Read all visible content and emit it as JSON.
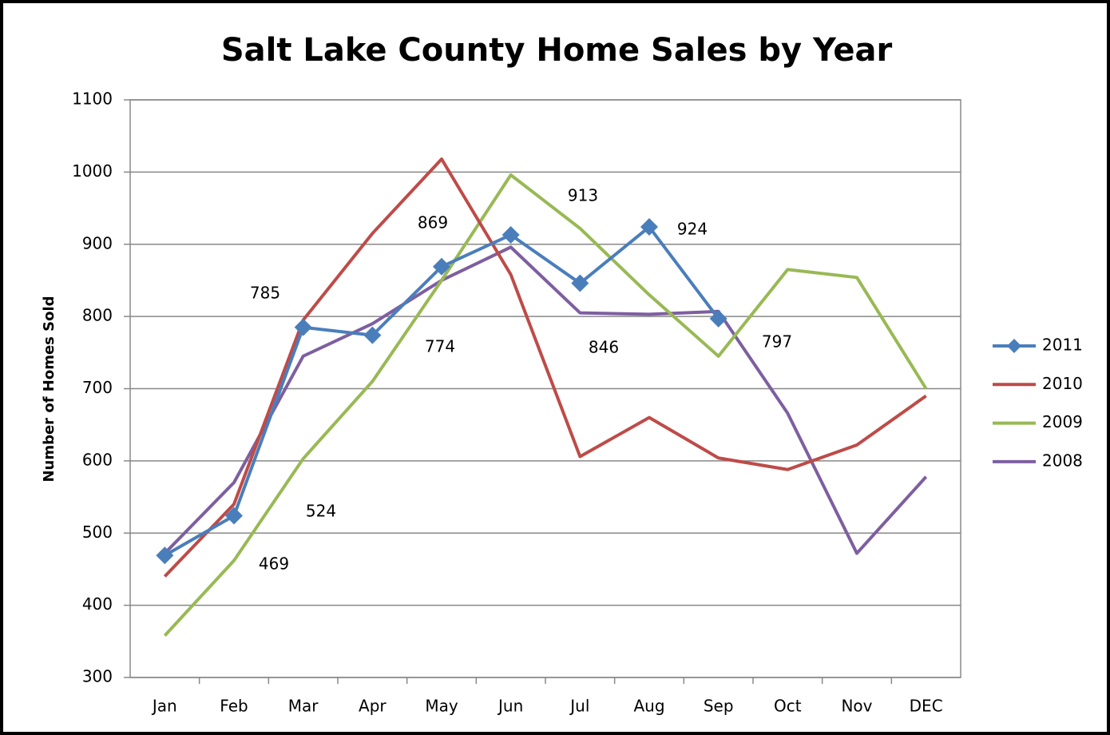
{
  "chart_data": {
    "type": "line",
    "title": "Salt Lake County Home Sales by Year",
    "y_label": "Number of Homes Sold",
    "categories": [
      "Jan",
      "Feb",
      "Mar",
      "Apr",
      "May",
      "Jun",
      "Jul",
      "Aug",
      "Sep",
      "Oct",
      "Nov",
      "DEC"
    ],
    "series": [
      {
        "name": "2011",
        "color": "#4a7ebb",
        "marker": "diamond",
        "data_labels": true,
        "values": [
          469,
          524,
          785,
          774,
          869,
          913,
          846,
          924,
          797,
          null,
          null,
          null
        ]
      },
      {
        "name": "2010",
        "color": "#be4b48",
        "values": [
          440,
          540,
          795,
          915,
          1018,
          858,
          606,
          660,
          604,
          588,
          622,
          690
        ]
      },
      {
        "name": "2009",
        "color": "#98b954",
        "values": [
          358,
          462,
          603,
          710,
          850,
          996,
          922,
          830,
          745,
          865,
          854,
          700
        ]
      },
      {
        "name": "2008",
        "color": "#7d5fa0",
        "values": [
          472,
          570,
          745,
          790,
          850,
          896,
          805,
          803,
          807,
          666,
          472,
          578
        ]
      }
    ],
    "ylim": [
      300,
      1100
    ],
    "yticks": [
      300,
      400,
      500,
      600,
      700,
      800,
      900,
      1000,
      1100
    ],
    "grid": true,
    "legend": "right"
  }
}
